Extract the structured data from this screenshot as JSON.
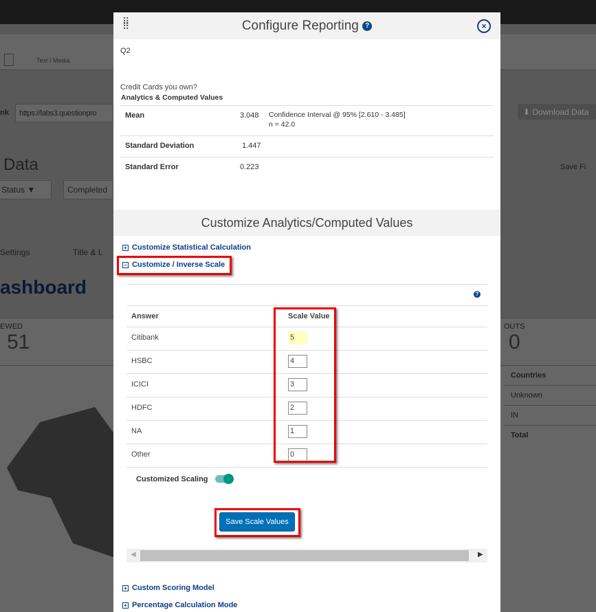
{
  "background": {
    "toolbar_item": "Text / Media",
    "link_label": "nk",
    "link_url": "https://labs3.questionpro",
    "download_button": "Download Data",
    "data_title": "Data",
    "status_filter": "Status",
    "completed_filter": "Completed",
    "save_filter": "Save Fi",
    "settings_tab": "Settings",
    "title_tab": "Title & L",
    "dashboard_title": "ashboard",
    "viewed_label": "EWED",
    "viewed_value": "51",
    "dropouts_label": "OUTS",
    "dropouts_value": "0",
    "countries": [
      "Countries",
      "Unknown",
      "IN",
      "Total"
    ]
  },
  "modal": {
    "title": "Configure Reporting",
    "question_id": "Q2",
    "question_text": "Credit Cards you own?",
    "analytics_heading": "Analytics & Computed Values",
    "stats": [
      {
        "label": "Mean",
        "value": "3.048",
        "note": "Confidence Interval @ 95% [2.610 - 3.485]",
        "note2": "n = 42.0"
      },
      {
        "label": "Standard Deviation",
        "value": "1.447"
      },
      {
        "label": "Standard Error",
        "value": "0.223"
      }
    ],
    "customize_heading": "Customize Analytics/Computed Values",
    "accordions": {
      "statistical": "Customize Statistical Calculation",
      "inverse": "Customize / Inverse Scale",
      "scoring": "Custom Scoring Model",
      "percentage": "Percentage Calculation Mode"
    },
    "scale_table": {
      "headers": [
        "Answer",
        "Scale Value"
      ],
      "rows": [
        {
          "answer": "Citibank",
          "value": "5"
        },
        {
          "answer": "HSBC",
          "value": "4"
        },
        {
          "answer": "ICICI",
          "value": "3"
        },
        {
          "answer": "HDFC",
          "value": "2"
        },
        {
          "answer": "NA",
          "value": "1"
        },
        {
          "answer": "Other",
          "value": "0"
        }
      ]
    },
    "customized_scaling_label": "Customized Scaling",
    "customized_scaling_on": true,
    "save_button": "Save Scale Values"
  },
  "colors": {
    "accent": "#0b3f8a",
    "button": "#0070b8",
    "highlight": "#e00000",
    "toggle": "#009688"
  }
}
